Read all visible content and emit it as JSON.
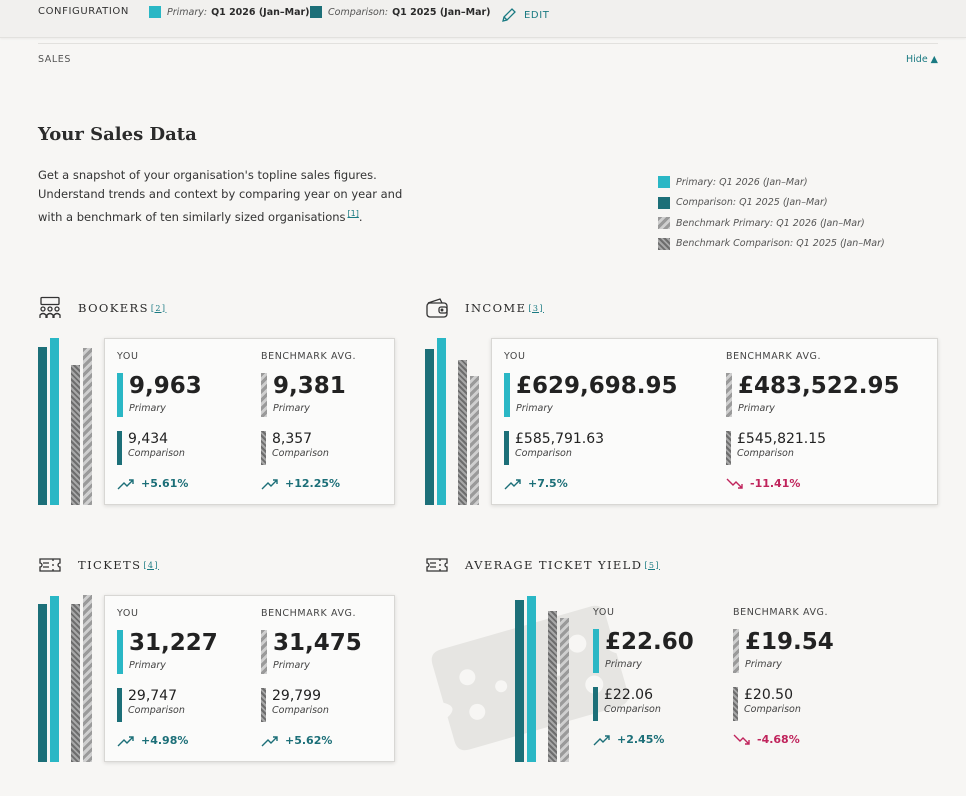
{
  "config": {
    "title": "CONFIGURATION",
    "primary_label": "Primary:",
    "primary_value": "Q1 2026 (Jan–Mar)",
    "comparison_label": "Comparison:",
    "comparison_value": "Q1 2025 (Jan–Mar)",
    "edit_label": "EDIT"
  },
  "section": {
    "label": "SALES",
    "hide_label": "Hide ▲"
  },
  "page": {
    "title": "Your Sales Data",
    "intro_line1": "Get a snapshot of your organisation's topline sales figures.",
    "intro_line2": "Understand trends and context by comparing year on year and",
    "intro_line3": "with a benchmark of ten similarly sized organisations",
    "intro_ref": "[1]"
  },
  "legend": {
    "primary": "Primary: Q1 2026 (Jan–Mar)",
    "comparison": "Comparison: Q1 2025 (Jan–Mar)",
    "bench_primary": "Benchmark Primary: Q1 2026 (Jan–Mar)",
    "bench_comparison": "Benchmark Comparison: Q1 2025 (Jan–Mar)"
  },
  "colors": {
    "primary": "#2ab7c5",
    "comparison": "#1c6f78",
    "up": "#1c6f78",
    "down": "#c0245c"
  },
  "col_labels": {
    "you": "YOU",
    "benchmark": "BENCHMARK AVG.",
    "primary": "Primary",
    "comparison": "Comparison"
  },
  "metrics": {
    "bookers": {
      "title": "BOOKERS",
      "ref": "[2]",
      "icon": "people-icon",
      "you_primary": "9,963",
      "you_comparison": "9,434",
      "you_change": "+5.61%",
      "you_dir": "up",
      "bench_primary": "9,381",
      "bench_comparison": "8,357",
      "bench_change": "+12.25%",
      "bench_dir": "up"
    },
    "income": {
      "title": "INCOME",
      "ref": "[3]",
      "icon": "wallet-icon",
      "you_primary": "£629,698.95",
      "you_comparison": "£585,791.63",
      "you_change": "+7.5%",
      "you_dir": "up",
      "bench_primary": "£483,522.95",
      "bench_comparison": "£545,821.15",
      "bench_change": "-11.41%",
      "bench_dir": "down"
    },
    "tickets": {
      "title": "TICKETS",
      "ref": "[4]",
      "icon": "ticket-icon",
      "you_primary": "31,227",
      "you_comparison": "29,747",
      "you_change": "+4.98%",
      "you_dir": "up",
      "bench_primary": "31,475",
      "bench_comparison": "29,799",
      "bench_change": "+5.62%",
      "bench_dir": "up"
    },
    "yield": {
      "title": "AVERAGE TICKET YIELD",
      "ref": "[5]",
      "icon": "ticket-icon",
      "you_primary": "£22.60",
      "you_comparison": "£22.06",
      "you_change": "+2.45%",
      "you_dir": "up",
      "bench_primary": "£19.54",
      "bench_comparison": "£20.50",
      "bench_change": "-4.68%",
      "bench_dir": "down"
    }
  }
}
